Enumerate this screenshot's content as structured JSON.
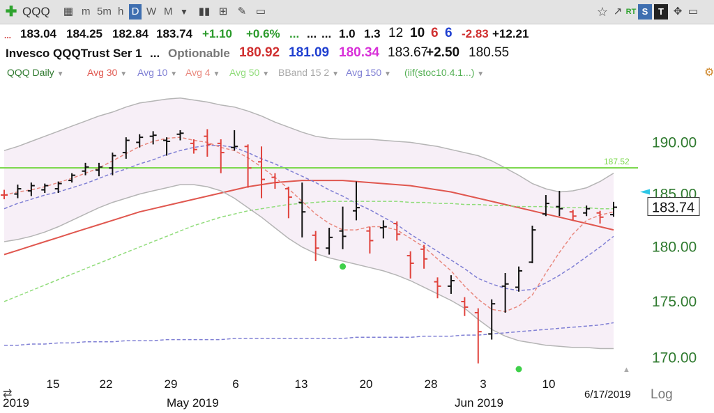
{
  "toolbar": {
    "symbol": "QQQ",
    "intervals": [
      "m",
      "5m",
      "h",
      "D",
      "W",
      "M"
    ],
    "active_interval": "D",
    "rt_label": "RT",
    "s_label": "S",
    "t_label": "T"
  },
  "quote_line1": {
    "prefix": "...",
    "open": "183.04",
    "high": "184.25",
    "low": "182.84",
    "last": "183.74",
    "change": "+1.10",
    "change_pct": "+0.6%",
    "dots_green": "...",
    "dots_a": "...",
    "dots_b": "...",
    "v1": "1.0",
    "v2": "1.3",
    "v3": "12",
    "v4": "10",
    "v5": "6",
    "v6": "6",
    "v7": "-2.83",
    "v8": "+12.21"
  },
  "quote_line2": {
    "name": "Invesco QQQTrust Ser 1",
    "dots": "...",
    "optionable": "Optionable",
    "p1": "180.92",
    "p2": "181.09",
    "p3": "180.34",
    "p4": "183.67",
    "p5": "+2.50",
    "p6": "180.55"
  },
  "studies": [
    {
      "label": "QQQ Daily",
      "color": "#2f7a2f"
    },
    {
      "label": "Avg 30",
      "color": "#e0574f"
    },
    {
      "label": "Avg 10",
      "color": "#7f7fd4"
    },
    {
      "label": "Avg 4",
      "color": "#e9897f"
    },
    {
      "label": "Avg 50",
      "color": "#90dc7a"
    },
    {
      "label": "BBand 15 2",
      "color": "#a9a9a9"
    },
    {
      "label": "Avg 150",
      "color": "#7f7fd4"
    },
    {
      "label": "(iif(stoc10.4.1...)",
      "color": "#55b055"
    }
  ],
  "chart_data": {
    "type": "ohlc",
    "ylim": [
      169.0,
      196.0
    ],
    "y_ticks": [
      "190.00",
      "185.00",
      "180.00",
      "175.00",
      "170.00"
    ],
    "x_ticks": [
      "15",
      "22",
      "29",
      "6",
      "13",
      "20",
      "28",
      "3",
      "10"
    ],
    "month_labels": [
      "2019",
      "May 2019",
      "Jun 2019"
    ],
    "date_label": "6/17/2019",
    "scale_label": "Log",
    "last_price": "183.74",
    "horizontal_line": {
      "value": 187.52,
      "label": "187.52",
      "color": "#7cd84e"
    },
    "bars": [
      {
        "o": 184.9,
        "h": 185.4,
        "l": 184.5,
        "c": 184.9,
        "dir": "down"
      },
      {
        "o": 185.0,
        "h": 185.9,
        "l": 184.6,
        "c": 185.5,
        "dir": "up"
      },
      {
        "o": 185.3,
        "h": 186.1,
        "l": 184.8,
        "c": 185.8,
        "dir": "up"
      },
      {
        "o": 185.4,
        "h": 186.0,
        "l": 185.1,
        "c": 185.8,
        "dir": "up"
      },
      {
        "o": 185.5,
        "h": 186.2,
        "l": 185.1,
        "c": 186.0,
        "dir": "up"
      },
      {
        "o": 186.3,
        "h": 187.0,
        "l": 186.1,
        "c": 186.8,
        "dir": "up"
      },
      {
        "o": 187.2,
        "h": 188.0,
        "l": 186.8,
        "c": 187.6,
        "dir": "up"
      },
      {
        "o": 187.3,
        "h": 188.0,
        "l": 186.7,
        "c": 187.6,
        "dir": "up"
      },
      {
        "o": 187.5,
        "h": 189.0,
        "l": 186.8,
        "c": 188.7,
        "dir": "up"
      },
      {
        "o": 189.0,
        "h": 190.5,
        "l": 188.4,
        "c": 190.2,
        "dir": "up"
      },
      {
        "o": 190.0,
        "h": 190.8,
        "l": 189.5,
        "c": 190.5,
        "dir": "up"
      },
      {
        "o": 190.6,
        "h": 191.1,
        "l": 189.8,
        "c": 190.7,
        "dir": "up"
      },
      {
        "o": 190.2,
        "h": 190.5,
        "l": 188.7,
        "c": 190.1,
        "dir": "up"
      },
      {
        "o": 190.8,
        "h": 191.2,
        "l": 190.2,
        "c": 190.9,
        "dir": "up"
      },
      {
        "o": 189.9,
        "h": 190.3,
        "l": 188.9,
        "c": 189.3,
        "dir": "down"
      },
      {
        "o": 190.6,
        "h": 191.3,
        "l": 188.6,
        "c": 189.8,
        "dir": "down"
      },
      {
        "o": 189.9,
        "h": 190.3,
        "l": 187.0,
        "c": 189.0,
        "dir": "down"
      },
      {
        "o": 189.5,
        "h": 191.2,
        "l": 189.2,
        "c": 189.6,
        "dir": "up"
      },
      {
        "o": 189.6,
        "h": 189.8,
        "l": 185.6,
        "c": 187.5,
        "dir": "down"
      },
      {
        "o": 188.1,
        "h": 189.6,
        "l": 184.6,
        "c": 186.4,
        "dir": "down"
      },
      {
        "o": 186.6,
        "h": 187.0,
        "l": 185.5,
        "c": 186.1,
        "dir": "down"
      },
      {
        "o": 185.5,
        "h": 185.7,
        "l": 182.7,
        "c": 184.7,
        "dir": "down"
      },
      {
        "o": 184.2,
        "h": 186.1,
        "l": 180.9,
        "c": 183.3,
        "dir": "up"
      },
      {
        "o": 181.1,
        "h": 181.5,
        "l": 178.7,
        "c": 179.9,
        "dir": "down"
      },
      {
        "o": 179.9,
        "h": 181.8,
        "l": 179.3,
        "c": 180.9,
        "dir": "up"
      },
      {
        "o": 181.5,
        "h": 183.8,
        "l": 179.8,
        "c": 181.0,
        "dir": "up"
      },
      {
        "o": 183.4,
        "h": 186.2,
        "l": 182.5,
        "c": 183.7,
        "dir": "up"
      },
      {
        "o": 181.5,
        "h": 181.9,
        "l": 179.4,
        "c": 180.6,
        "dir": "down"
      },
      {
        "o": 181.8,
        "h": 182.5,
        "l": 180.8,
        "c": 181.9,
        "dir": "up"
      },
      {
        "o": 182.2,
        "h": 182.4,
        "l": 180.6,
        "c": 181.2,
        "dir": "down"
      },
      {
        "o": 179.2,
        "h": 179.6,
        "l": 177.1,
        "c": 178.5,
        "dir": "down"
      },
      {
        "o": 179.8,
        "h": 180.2,
        "l": 178.0,
        "c": 178.9,
        "dir": "down"
      },
      {
        "o": 176.8,
        "h": 177.2,
        "l": 175.3,
        "c": 176.4,
        "dir": "down"
      },
      {
        "o": 176.4,
        "h": 177.4,
        "l": 175.7,
        "c": 176.9,
        "dir": "up"
      },
      {
        "o": 175.0,
        "h": 175.4,
        "l": 173.7,
        "c": 174.5,
        "dir": "down"
      },
      {
        "o": 174.0,
        "h": 174.4,
        "l": 169.5,
        "c": 172.3,
        "dir": "down"
      },
      {
        "o": 172.1,
        "h": 175.2,
        "l": 171.6,
        "c": 174.8,
        "dir": "up"
      },
      {
        "o": 176.4,
        "h": 177.6,
        "l": 174.0,
        "c": 176.6,
        "dir": "up"
      },
      {
        "o": 176.3,
        "h": 178.2,
        "l": 175.9,
        "c": 177.8,
        "dir": "up"
      },
      {
        "o": 178.6,
        "h": 182.0,
        "l": 178.5,
        "c": 181.6,
        "dir": "up"
      },
      {
        "o": 183.1,
        "h": 184.9,
        "l": 182.9,
        "c": 184.1,
        "dir": "up"
      },
      {
        "o": 183.8,
        "h": 185.3,
        "l": 182.9,
        "c": 183.6,
        "dir": "up"
      },
      {
        "o": 183.3,
        "h": 183.5,
        "l": 182.5,
        "c": 182.9,
        "dir": "down"
      },
      {
        "o": 183.2,
        "h": 183.9,
        "l": 182.9,
        "c": 183.6,
        "dir": "up"
      },
      {
        "o": 183.2,
        "h": 183.4,
        "l": 182.2,
        "c": 182.8,
        "dir": "down"
      },
      {
        "o": 183.04,
        "h": 184.25,
        "l": 182.84,
        "c": 183.74,
        "dir": "up"
      }
    ],
    "series": [
      {
        "name": "Avg 30",
        "color": "#e0574f",
        "style": "solid",
        "values": [
          179.3,
          179.7,
          180.1,
          180.5,
          180.9,
          181.3,
          181.7,
          182.1,
          182.5,
          182.9,
          183.3,
          183.6,
          183.9,
          184.2,
          184.5,
          184.8,
          185.1,
          185.4,
          185.7,
          185.9,
          186.1,
          186.2,
          186.3,
          186.3,
          186.3,
          186.3,
          186.2,
          186.1,
          186.0,
          185.9,
          185.8,
          185.6,
          185.4,
          185.2,
          184.9,
          184.6,
          184.3,
          184.0,
          183.7,
          183.4,
          183.1,
          182.8,
          182.5,
          182.2,
          181.9,
          181.6
        ]
      },
      {
        "name": "Avg 10",
        "color": "#7f7fd4",
        "style": "dashed",
        "values": [
          183.6,
          184.1,
          184.5,
          184.9,
          185.2,
          185.6,
          186.0,
          186.5,
          187.0,
          187.4,
          187.9,
          188.3,
          188.8,
          189.2,
          189.5,
          189.7,
          189.7,
          189.5,
          189.0,
          188.4,
          187.9,
          187.3,
          186.7,
          186.1,
          185.4,
          184.8,
          184.1,
          183.5,
          182.8,
          182.1,
          181.2,
          180.4,
          179.6,
          178.8,
          178.0,
          177.1,
          176.6,
          176.2,
          176.0,
          176.1,
          176.7,
          177.4,
          178.2,
          179.1,
          180.0,
          181.0
        ]
      },
      {
        "name": "Avg 4",
        "color": "#e9897f",
        "style": "dashed",
        "values": [
          184.9,
          185.2,
          185.4,
          185.7,
          186.1,
          186.5,
          187.0,
          187.5,
          188.2,
          188.9,
          189.6,
          190.1,
          190.4,
          190.5,
          190.2,
          190.0,
          189.5,
          189.2,
          188.5,
          187.6,
          186.6,
          185.5,
          184.3,
          183.1,
          182.2,
          181.6,
          181.6,
          181.9,
          181.9,
          181.6,
          180.8,
          180.0,
          178.9,
          177.8,
          176.4,
          175.2,
          174.3,
          174.1,
          174.6,
          175.6,
          177.6,
          179.5,
          181.2,
          182.5,
          183.0,
          183.3
        ]
      },
      {
        "name": "Avg 50",
        "color": "#90dc7a",
        "style": "dashed",
        "values": [
          175.0,
          175.5,
          176.0,
          176.5,
          177.0,
          177.5,
          178.0,
          178.5,
          179.0,
          179.5,
          180.0,
          180.5,
          181.0,
          181.5,
          182.0,
          182.4,
          182.8,
          183.1,
          183.4,
          183.6,
          183.8,
          184.0,
          184.1,
          184.2,
          184.3,
          184.3,
          184.3,
          184.3,
          184.3,
          184.3,
          184.2,
          184.2,
          184.1,
          184.1,
          184.0,
          184.0,
          183.9,
          183.9,
          183.8,
          183.8,
          183.8,
          183.7,
          183.7,
          183.7,
          183.6,
          183.6
        ]
      },
      {
        "name": "Avg 150",
        "color": "#7f7fd4",
        "style": "dashed",
        "values": [
          171.1,
          171.1,
          171.2,
          171.2,
          171.3,
          171.3,
          171.4,
          171.4,
          171.4,
          171.5,
          171.5,
          171.5,
          171.6,
          171.6,
          171.6,
          171.6,
          171.6,
          171.7,
          171.7,
          171.7,
          171.7,
          171.7,
          171.7,
          171.7,
          171.7,
          171.7,
          171.8,
          171.8,
          171.8,
          171.8,
          171.8,
          171.9,
          171.9,
          171.9,
          172.0,
          172.0,
          172.1,
          172.2,
          172.3,
          172.4,
          172.5,
          172.6,
          172.7,
          172.8,
          172.9,
          173.1
        ]
      },
      {
        "name": "BBand upper",
        "color": "#b5b5b5",
        "style": "solid",
        "values": [
          189.2,
          189.6,
          190.1,
          190.6,
          191.1,
          191.6,
          192.1,
          192.6,
          193.0,
          193.5,
          193.9,
          194.1,
          194.3,
          194.4,
          194.2,
          194.0,
          193.7,
          193.5,
          193.1,
          192.6,
          192.0,
          191.5,
          191.0,
          190.6,
          190.4,
          190.3,
          190.3,
          190.3,
          190.2,
          190.1,
          190.0,
          189.8,
          189.6,
          189.3,
          189.0,
          188.7,
          188.2,
          187.5,
          186.8,
          186.0,
          185.5,
          185.2,
          185.3,
          185.6,
          186.2,
          187.0
        ]
      },
      {
        "name": "BBand lower",
        "color": "#b5b5b5",
        "style": "solid",
        "values": [
          180.5,
          180.7,
          181.0,
          181.4,
          181.9,
          182.5,
          183.1,
          183.7,
          184.2,
          184.6,
          185.0,
          185.3,
          185.6,
          185.9,
          185.9,
          185.7,
          185.3,
          184.6,
          183.7,
          182.8,
          181.8,
          180.8,
          180.0,
          179.4,
          179.0,
          178.7,
          178.4,
          178.1,
          177.8,
          177.4,
          176.9,
          176.3,
          175.7,
          175.1,
          174.4,
          173.4,
          172.5,
          171.9,
          171.5,
          171.3,
          171.1,
          171.0,
          170.9,
          170.9,
          170.8,
          170.8
        ]
      }
    ],
    "signal_dots": [
      {
        "bar": 25,
        "value": 178.2
      },
      {
        "bar": 38,
        "value": 169.0
      }
    ]
  }
}
